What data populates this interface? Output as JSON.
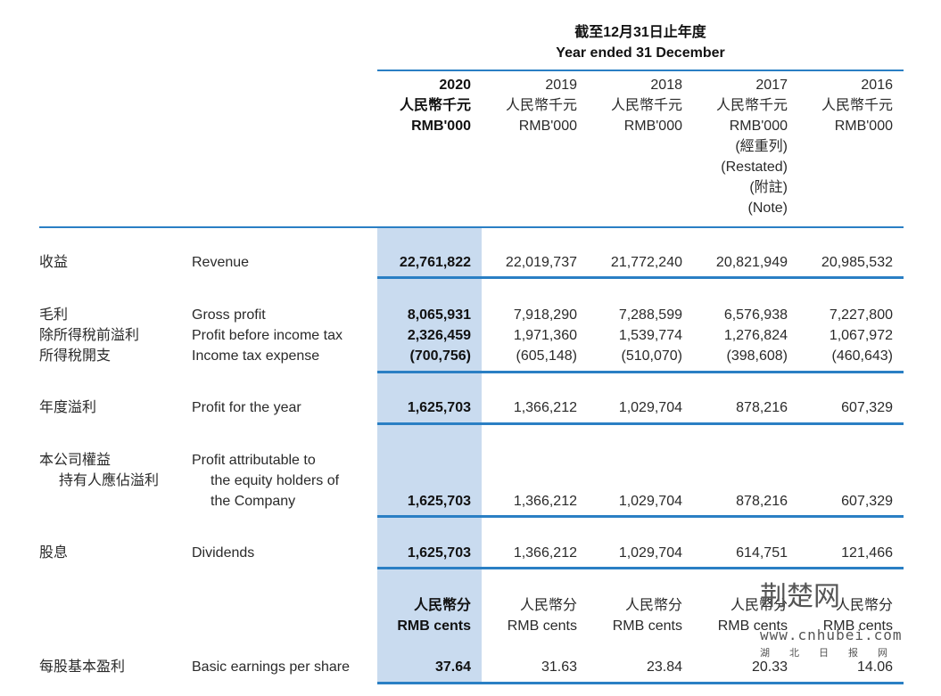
{
  "header": {
    "title_zh": "截至12月31日止年度",
    "title_en": "Year ended 31 December"
  },
  "columns": [
    {
      "year": "2020",
      "unit_zh": "人民幣千元",
      "unit_en": "RMB'000",
      "notes": []
    },
    {
      "year": "2019",
      "unit_zh": "人民幣千元",
      "unit_en": "RMB'000",
      "notes": []
    },
    {
      "year": "2018",
      "unit_zh": "人民幣千元",
      "unit_en": "RMB'000",
      "notes": []
    },
    {
      "year": "2017",
      "unit_zh": "人民幣千元",
      "unit_en": "RMB'000",
      "notes": [
        "(經重列)",
        "(Restated)",
        "(附註)",
        "(Note)"
      ]
    },
    {
      "year": "2016",
      "unit_zh": "人民幣千元",
      "unit_en": "RMB'000",
      "notes": []
    }
  ],
  "rows": {
    "revenue": {
      "zh": "收益",
      "en": "Revenue",
      "values": [
        "22,761,822",
        "22,019,737",
        "21,772,240",
        "20,821,949",
        "20,985,532"
      ]
    },
    "gross_profit": {
      "zh": "毛利",
      "en": "Gross profit",
      "values": [
        "8,065,931",
        "7,918,290",
        "7,288,599",
        "6,576,938",
        "7,227,800"
      ]
    },
    "profit_before_tax": {
      "zh": "除所得稅前溢利",
      "en": "Profit before income tax",
      "values": [
        "2,326,459",
        "1,971,360",
        "1,539,774",
        "1,276,824",
        "1,067,972"
      ]
    },
    "income_tax": {
      "zh": "所得稅開支",
      "en": "Income tax expense",
      "values": [
        "(700,756)",
        "(605,148)",
        "(510,070)",
        "(398,608)",
        "(460,643)"
      ]
    },
    "profit_for_year": {
      "zh": "年度溢利",
      "en": "Profit for the year",
      "values": [
        "1,625,703",
        "1,366,212",
        "1,029,704",
        "878,216",
        "607,329"
      ]
    },
    "profit_attributable": {
      "zh_1": "本公司權益",
      "zh_2": "持有人應佔溢利",
      "en_1": "Profit attributable to",
      "en_2": "the equity holders of",
      "en_3": "the Company",
      "values": [
        "1,625,703",
        "1,366,212",
        "1,029,704",
        "878,216",
        "607,329"
      ]
    },
    "dividends": {
      "zh": "股息",
      "en": "Dividends",
      "values": [
        "1,625,703",
        "1,366,212",
        "1,029,704",
        "614,751",
        "121,466"
      ]
    }
  },
  "eps_units": [
    {
      "zh": "人民幣分",
      "en": "RMB cents"
    },
    {
      "zh": "人民幣分",
      "en": "RMB cents"
    },
    {
      "zh": "人民幣分",
      "en": "RMB cents"
    },
    {
      "zh": "人民幣分",
      "en": "RMB cents"
    },
    {
      "zh": "人民幣分",
      "en": "RMB cents"
    }
  ],
  "eps": {
    "zh": "每股基本盈利",
    "en": "Basic earnings per share",
    "values": [
      "37.64",
      "31.63",
      "23.84",
      "20.33",
      "14.06"
    ]
  },
  "watermark": {
    "logo": "荆楚网",
    "site": "www.cnhubei.com",
    "sub": "湖北日报网"
  },
  "colors": {
    "highlight": "#c9dbef",
    "rule": "#2a7fc4"
  }
}
